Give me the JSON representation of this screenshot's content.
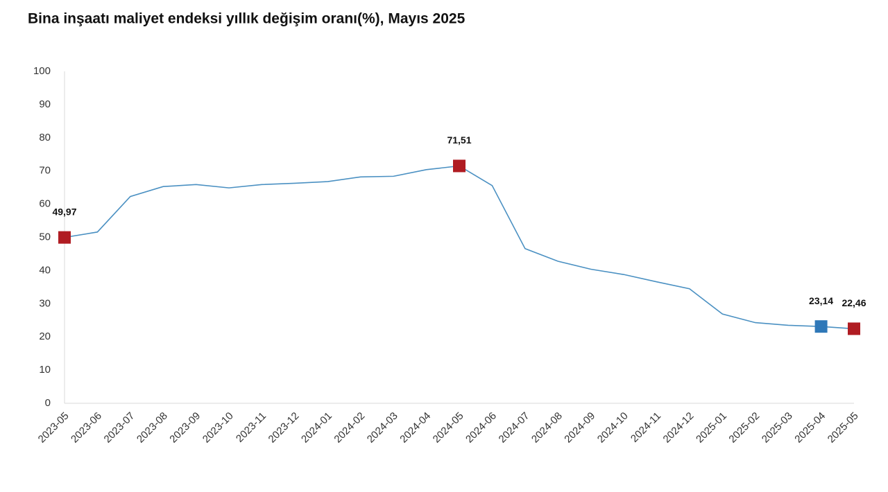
{
  "chart_data": {
    "type": "line",
    "title": "Bina inşaatı maliyet endeksi yıllık değişim oranı(%), Mayıs 2025",
    "categories": [
      "2023-05",
      "2023-06",
      "2023-07",
      "2023-08",
      "2023-09",
      "2023-10",
      "2023-11",
      "2023-12",
      "2024-01",
      "2024-02",
      "2024-03",
      "2024-04",
      "2024-05",
      "2024-06",
      "2024-07",
      "2024-08",
      "2024-09",
      "2024-10",
      "2024-11",
      "2024-12",
      "2025-01",
      "2025-02",
      "2025-03",
      "2025-04",
      "2025-05"
    ],
    "series": [
      {
        "name": "Yıllık değişim oranı",
        "color": "#4a90c2",
        "values": [
          49.97,
          51.6,
          62.3,
          65.3,
          65.9,
          64.9,
          65.9,
          66.3,
          66.8,
          68.2,
          68.4,
          70.4,
          71.51,
          65.6,
          46.6,
          42.8,
          40.4,
          38.8,
          36.6,
          34.5,
          26.9,
          24.3,
          23.5,
          23.14,
          22.46
        ],
        "value_labels": [
          "49,97",
          null,
          null,
          null,
          null,
          null,
          null,
          null,
          null,
          null,
          null,
          null,
          "71,51",
          null,
          null,
          null,
          null,
          null,
          null,
          null,
          null,
          null,
          null,
          "23,14",
          "22,46"
        ],
        "marker_colors": [
          "#b01c22",
          null,
          null,
          null,
          null,
          null,
          null,
          null,
          null,
          null,
          null,
          null,
          "#b01c22",
          null,
          null,
          null,
          null,
          null,
          null,
          null,
          null,
          null,
          null,
          "#2f78b8",
          "#b01c22"
        ]
      }
    ],
    "ylim": [
      0,
      100
    ],
    "yticks": [
      0,
      10,
      20,
      30,
      40,
      50,
      60,
      70,
      80,
      90,
      100
    ],
    "grid": false
  }
}
